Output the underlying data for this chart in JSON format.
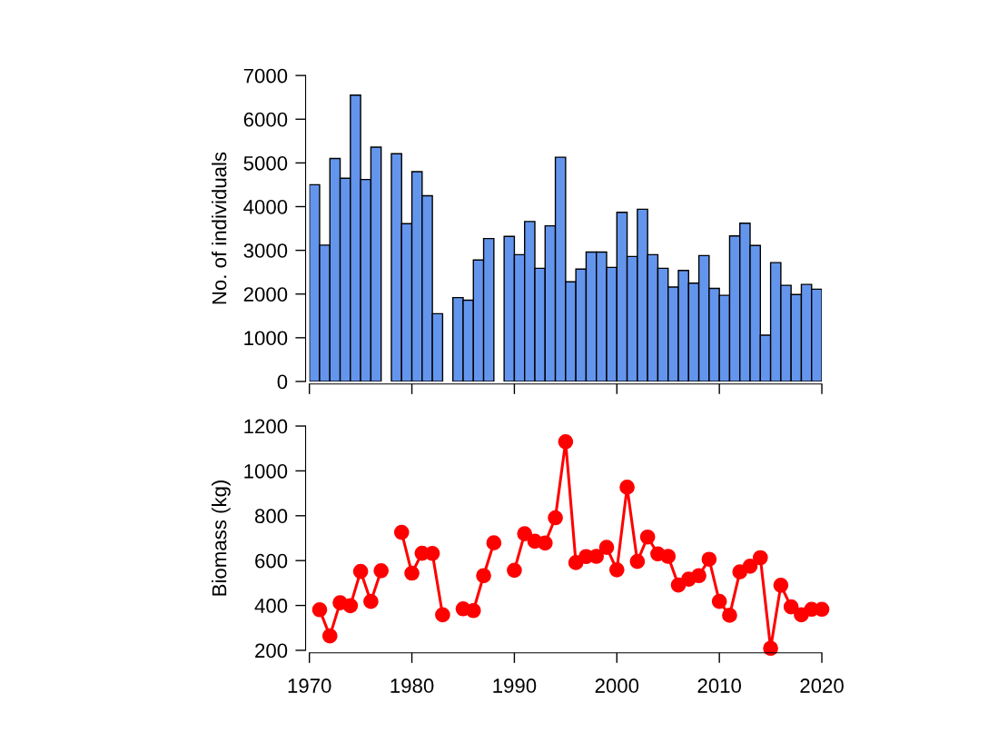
{
  "chart_data": [
    {
      "type": "bar",
      "ylabel": "No. of individuals",
      "x": [
        1970.5,
        1971.5,
        1972.5,
        1973.5,
        1974.5,
        1975.5,
        1976.5,
        1977.5,
        1978.5,
        1979.5,
        1980.5,
        1981.5,
        1982.5,
        1983.5,
        1984.5,
        1985.5,
        1986.5,
        1987.5,
        1988.5,
        1989.5,
        1990.5,
        1991.5,
        1992.5,
        1993.5,
        1994.5,
        1995.5,
        1996.5,
        1997.5,
        1998.5,
        1999.5,
        2000.5,
        2001.5,
        2002.5,
        2003.5,
        2004.5,
        2005.5,
        2006.5,
        2007.5,
        2008.5,
        2009.5,
        2010.5,
        2011.5,
        2012.5,
        2013.5,
        2014.5,
        2015.5,
        2016.5,
        2017.5,
        2018.5,
        2019.5
      ],
      "values": [
        4500,
        3120,
        5100,
        4650,
        6550,
        4620,
        5360,
        null,
        5210,
        3610,
        4800,
        4250,
        1550,
        null,
        1920,
        1860,
        2780,
        3270,
        null,
        3320,
        2900,
        3660,
        2590,
        3560,
        5130,
        2280,
        2570,
        2960,
        2960,
        2610,
        3870,
        2860,
        3940,
        2900,
        2590,
        2160,
        2540,
        2250,
        2880,
        2130,
        1970,
        3330,
        3620,
        3110,
        1060,
        2720,
        2200,
        1990,
        2220,
        2110
      ],
      "color": "#6495ed",
      "xlim": [
        1970,
        2020
      ],
      "xticks": [
        1970,
        1980,
        1990,
        2000,
        2010,
        2020
      ],
      "ylim": [
        0,
        7000
      ],
      "yticks": [
        0,
        1000,
        2000,
        3000,
        4000,
        5000,
        6000,
        7000
      ],
      "tick_labels": "y",
      "grid": false
    },
    {
      "type": "line",
      "ylabel": "Biomass (kg)",
      "x": [
        1971,
        1972,
        1973,
        1974,
        1975,
        1976,
        1977,
        1978,
        1979,
        1980,
        1981,
        1982,
        1983,
        1984,
        1985,
        1986,
        1987,
        1988,
        1989,
        1990,
        1991,
        1992,
        1993,
        1994,
        1995,
        1996,
        1997,
        1998,
        1999,
        2000,
        2001,
        2002,
        2003,
        2004,
        2005,
        2006,
        2007,
        2008,
        2009,
        2010,
        2011,
        2012,
        2013,
        2014,
        2015,
        2016,
        2017,
        2018,
        2019,
        2020
      ],
      "values": [
        381,
        264,
        412,
        399,
        552,
        418,
        555,
        null,
        726,
        544,
        633,
        632,
        358,
        null,
        385,
        377,
        533,
        679,
        null,
        557,
        720,
        686,
        678,
        791,
        1130,
        591,
        618,
        619,
        659,
        559,
        927,
        596,
        705,
        630,
        619,
        491,
        517,
        533,
        606,
        418,
        356,
        550,
        575,
        613,
        209,
        490,
        394,
        358,
        383,
        383
      ],
      "color": "#ff0000",
      "marker": "circle",
      "line_style": "solid",
      "xlim": [
        1970,
        2020
      ],
      "xticks": [
        1970,
        1980,
        1990,
        2000,
        2010,
        2020
      ],
      "ylim": [
        200,
        1200
      ],
      "yticks": [
        200,
        400,
        600,
        800,
        1000,
        1200
      ],
      "grid": false
    }
  ]
}
